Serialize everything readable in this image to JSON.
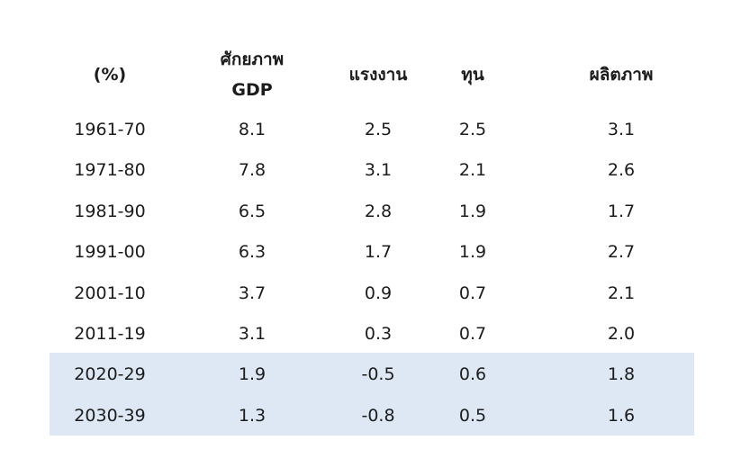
{
  "table": {
    "header": [
      "(%)",
      "ศักยภาพ\nGDP",
      "แรงงาน",
      "ทุน",
      "ผลิตภาพ"
    ],
    "rows": [
      [
        "1961-70",
        "8.1",
        "2.5",
        "2.5",
        "3.1"
      ],
      [
        "1971-80",
        "7.8",
        "3.1",
        "2.1",
        "2.6"
      ],
      [
        "1981-90",
        "6.5",
        "2.8",
        "1.9",
        "1.7"
      ],
      [
        "1991-00",
        "6.3",
        "1.7",
        "1.9",
        "2.7"
      ],
      [
        "2001-10",
        "3.7",
        "0.9",
        "0.7",
        "2.1"
      ],
      [
        "2011-19",
        "3.1",
        "0.3",
        "0.7",
        "2.0"
      ],
      [
        "2020-29",
        "1.9",
        "-0.5",
        "0.6",
        "1.8"
      ],
      [
        "2030-39",
        "1.3",
        "-0.8",
        "0.5",
        "1.6"
      ]
    ]
  }
}
